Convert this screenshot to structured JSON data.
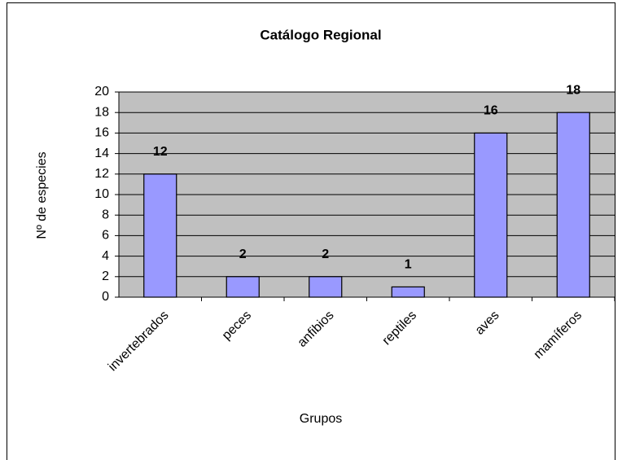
{
  "chart_data": {
    "type": "bar",
    "title": "Catálogo Regional",
    "x_label": "Grupos",
    "y_label": "Nº de especies",
    "categories": [
      "invertebrados",
      "peces",
      "anfibios",
      "reptiles",
      "aves",
      "mamíferos"
    ],
    "values": [
      12,
      2,
      2,
      1,
      16,
      18
    ],
    "color": "#9999ff",
    "ylim": [
      0,
      20
    ],
    "yticks": [
      0,
      2,
      4,
      6,
      8,
      10,
      12,
      14,
      16,
      18,
      20
    ],
    "grid": true
  }
}
